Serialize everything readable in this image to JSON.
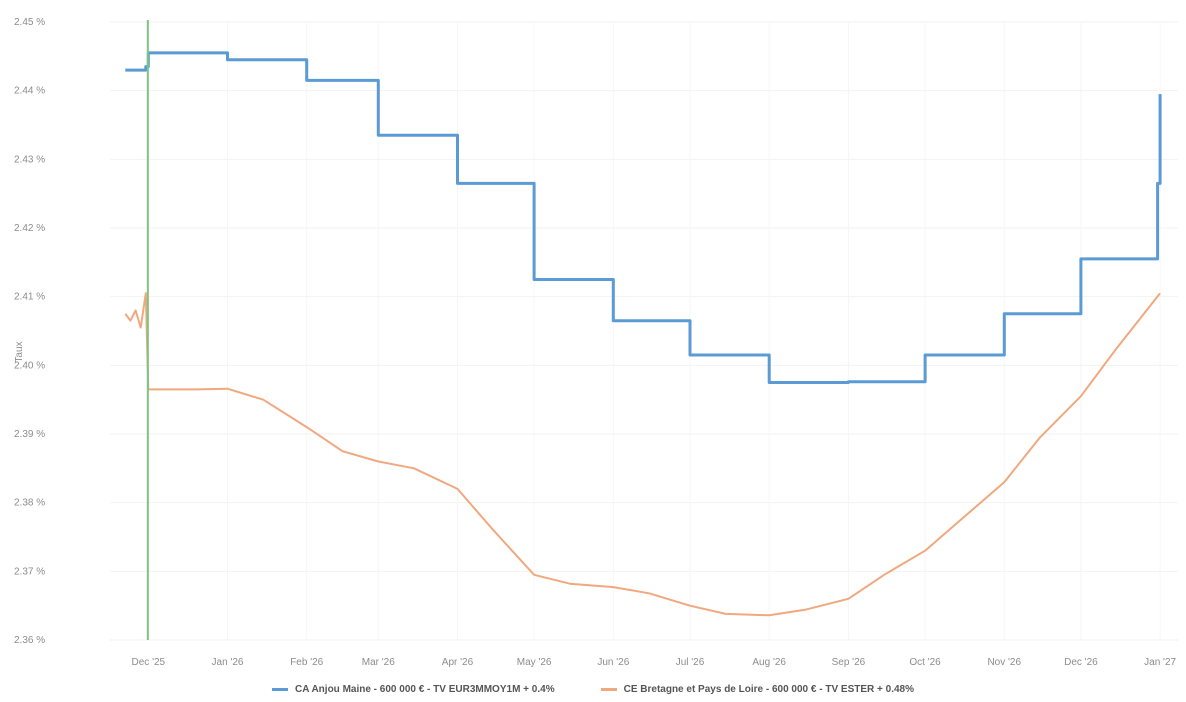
{
  "chart_data": {
    "type": "line",
    "ylabel": "Taux",
    "xlabel": "",
    "ylim": [
      2.36,
      2.45
    ],
    "y_ticks": [
      "2.36 %",
      "2.37 %",
      "2.38 %",
      "2.39 %",
      "2.40 %",
      "2.41 %",
      "2.42 %",
      "2.43 %",
      "2.44 %",
      "2.45 %"
    ],
    "x_ticks": [
      "Dec '25",
      "Jan '26",
      "Feb '26",
      "Mar '26",
      "Apr '26",
      "May '26",
      "Jun '26",
      "Jul '26",
      "Aug '26",
      "Sep '26",
      "Oct '26",
      "Nov '26",
      "Dec '26",
      "Jan '27"
    ],
    "grid": true,
    "legend_position": "bottom",
    "marker_date": "2025-12-01",
    "series": [
      {
        "name": "CA Anjou Maine - 600 000 € - TV EUR3MMOY1M + 0.4%",
        "color": "#5b9bd5",
        "step": true,
        "points": [
          [
            "2025-11-22",
            2.443
          ],
          [
            "2025-11-30",
            2.4435
          ],
          [
            "2025-12-01",
            2.4455
          ],
          [
            "2026-01-01",
            2.4445
          ],
          [
            "2026-02-01",
            2.4415
          ],
          [
            "2026-03-01",
            2.4335
          ],
          [
            "2026-04-01",
            2.4265
          ],
          [
            "2026-05-01",
            2.4125
          ],
          [
            "2026-06-01",
            2.4065
          ],
          [
            "2026-07-01",
            2.4015
          ],
          [
            "2026-08-01",
            2.3975
          ],
          [
            "2026-09-01",
            2.3976
          ],
          [
            "2026-10-01",
            2.4015
          ],
          [
            "2026-11-01",
            2.4075
          ],
          [
            "2026-12-01",
            2.4155
          ],
          [
            "2026-12-31",
            2.4265
          ],
          [
            "2027-01-01",
            2.4395
          ]
        ]
      },
      {
        "name": "CE Bretagne et Pays de Loire - 600 000 € - TV ESTER + 0.48%",
        "color": "#f0a87f",
        "step": false,
        "points": [
          [
            "2025-11-22",
            2.4075
          ],
          [
            "2025-11-24",
            2.4065
          ],
          [
            "2025-11-26",
            2.408
          ],
          [
            "2025-11-28",
            2.4055
          ],
          [
            "2025-11-30",
            2.4105
          ],
          [
            "2025-12-01",
            2.3965
          ],
          [
            "2025-12-20",
            2.3965
          ],
          [
            "2026-01-01",
            2.3966
          ],
          [
            "2026-01-15",
            2.395
          ],
          [
            "2026-02-01",
            2.391
          ],
          [
            "2026-02-15",
            2.3875
          ],
          [
            "2026-03-01",
            2.386
          ],
          [
            "2026-03-15",
            2.385
          ],
          [
            "2026-04-01",
            2.382
          ],
          [
            "2026-04-15",
            2.376
          ],
          [
            "2026-05-01",
            2.3695
          ],
          [
            "2026-05-15",
            2.3682
          ],
          [
            "2026-06-01",
            2.3677
          ],
          [
            "2026-06-15",
            2.3668
          ],
          [
            "2026-07-01",
            2.365
          ],
          [
            "2026-07-15",
            2.3638
          ],
          [
            "2026-08-01",
            2.3636
          ],
          [
            "2026-08-15",
            2.3644
          ],
          [
            "2026-09-01",
            2.366
          ],
          [
            "2026-09-15",
            2.3695
          ],
          [
            "2026-10-01",
            2.373
          ],
          [
            "2026-10-15",
            2.3775
          ],
          [
            "2026-11-01",
            2.383
          ],
          [
            "2026-11-15",
            2.3895
          ],
          [
            "2026-12-01",
            2.3955
          ],
          [
            "2026-12-15",
            2.4025
          ],
          [
            "2027-01-01",
            2.4105
          ]
        ]
      }
    ]
  }
}
